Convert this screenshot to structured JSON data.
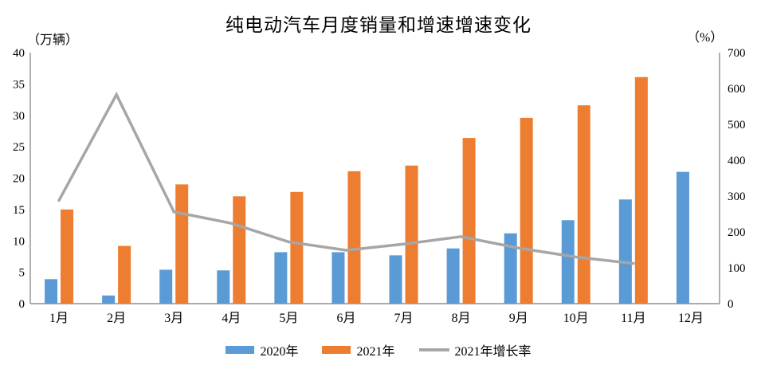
{
  "title": "纯电动汽车月度销量和增速增速变化",
  "chart_data": {
    "type": "bar+line",
    "title": "纯电动汽车月度销量和增速增速变化",
    "categories": [
      "1月",
      "2月",
      "3月",
      "4月",
      "5月",
      "6月",
      "7月",
      "8月",
      "9月",
      "10月",
      "11月",
      "12月"
    ],
    "series": [
      {
        "name": "2020年",
        "chart": "bar",
        "axis": "left",
        "color": "#5B9BD5",
        "values": [
          3.9,
          1.3,
          5.4,
          5.3,
          8.2,
          8.2,
          7.7,
          8.8,
          11.2,
          13.3,
          16.6,
          21.0
        ]
      },
      {
        "name": "2021年",
        "chart": "bar",
        "axis": "left",
        "color": "#ED7D31",
        "values": [
          15.0,
          9.2,
          19.0,
          17.1,
          17.8,
          21.1,
          22.0,
          26.4,
          29.6,
          31.6,
          36.1,
          null
        ]
      },
      {
        "name": "2021年增长率",
        "chart": "line",
        "axis": "right",
        "color": "#A6A6A6",
        "values": [
          288,
          583,
          256,
          224,
          172,
          149,
          166,
          187,
          155,
          130,
          112,
          null
        ]
      }
    ],
    "left_axis": {
      "unit": "（万辆）",
      "min": 0,
      "max": 40,
      "step": 5,
      "ticks": [
        0,
        5,
        10,
        15,
        20,
        25,
        30,
        35,
        40
      ]
    },
    "right_axis": {
      "unit": "（%）",
      "min": 0,
      "max": 700,
      "step": 100,
      "ticks": [
        0,
        100,
        200,
        300,
        400,
        500,
        600,
        700
      ]
    },
    "legend_position": "bottom",
    "grid": false,
    "axis_line_color": "#8f8f8f"
  }
}
